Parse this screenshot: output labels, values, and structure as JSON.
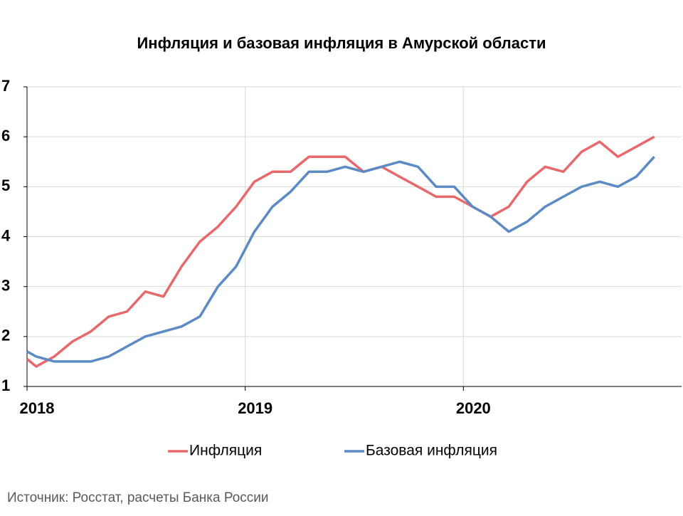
{
  "chart_data": {
    "type": "line",
    "title": "Инфляция и базовая инфляция в Амурской области",
    "source": "Источник: Росстат, расчеты Банка России",
    "x": [
      2018,
      2018.042,
      2018.125,
      2018.208,
      2018.292,
      2018.375,
      2018.458,
      2018.542,
      2018.625,
      2018.708,
      2018.792,
      2018.875,
      2018.958,
      2019.042,
      2019.125,
      2019.208,
      2019.292,
      2019.375,
      2019.458,
      2019.542,
      2019.625,
      2019.708,
      2019.792,
      2019.875,
      2019.958,
      2020.042,
      2020.125,
      2020.208,
      2020.292,
      2020.375,
      2020.458,
      2020.542,
      2020.625,
      2020.708,
      2020.792,
      2020.875
    ],
    "series": [
      {
        "name": "Инфляция",
        "color": "#e8696b",
        "values": [
          1.55,
          1.4,
          1.6,
          1.9,
          2.1,
          2.4,
          2.5,
          2.9,
          2.8,
          3.4,
          3.9,
          4.2,
          4.6,
          5.1,
          5.3,
          5.3,
          5.6,
          5.6,
          5.6,
          5.3,
          5.4,
          5.2,
          5.0,
          4.8,
          4.8,
          4.6,
          4.4,
          4.6,
          5.1,
          5.4,
          5.3,
          5.7,
          5.9,
          5.6,
          5.8,
          6.0
        ]
      },
      {
        "name": "Базовая инфляция",
        "color": "#5b8ac4",
        "values": [
          1.7,
          1.6,
          1.5,
          1.5,
          1.5,
          1.6,
          1.8,
          2.0,
          2.1,
          2.2,
          2.4,
          3.0,
          3.4,
          4.1,
          4.6,
          4.9,
          5.3,
          5.3,
          5.4,
          5.3,
          5.4,
          5.5,
          5.4,
          5.0,
          5.0,
          4.6,
          4.4,
          4.1,
          4.3,
          4.6,
          4.8,
          5.0,
          5.1,
          5.0,
          5.2,
          5.6
        ]
      }
    ],
    "xlim": [
      2018,
      2021
    ],
    "xticks": [
      2018,
      2019,
      2020
    ],
    "ylim": [
      1,
      7
    ],
    "yticks": [
      1,
      2,
      3,
      4,
      5,
      6,
      7
    ],
    "grid": true
  }
}
